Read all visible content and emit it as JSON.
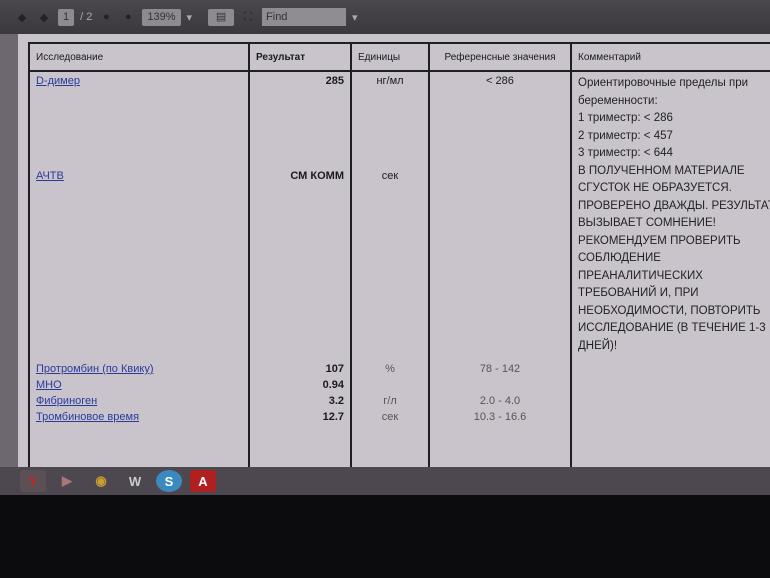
{
  "toolbar": {
    "page_current": "1",
    "page_total": "/ 2",
    "zoom": "139%",
    "find_placeholder": "Find"
  },
  "table": {
    "headers": [
      "Исследование",
      "Результат",
      "Единицы",
      "Референсные значения",
      "Комментарий"
    ],
    "rows": [
      {
        "name": "D-димер",
        "result": "285",
        "unit": "нг/мл",
        "ref": "< 286"
      },
      {
        "name": "АЧТВ",
        "result": "СМ КОММ",
        "unit": "сек",
        "ref": ""
      },
      {
        "name": "Протромбин (по Квику)",
        "result": "107",
        "unit": "%",
        "ref": "78 - 142"
      },
      {
        "name": "МНО",
        "result": "0.94",
        "unit": "",
        "ref": ""
      },
      {
        "name": "Фибриноген",
        "result": "3.2",
        "unit": "г/л",
        "ref": "2.0 - 4.0"
      },
      {
        "name": "Тромбиновое время",
        "result": "12.7",
        "unit": "сек",
        "ref": "10.3 - 16.6"
      }
    ],
    "comment_ddimer": [
      "Ориентировочные пределы при беременности:",
      "1 триместр: < 286",
      "2 триместр: < 457",
      "3 триместр: < 644"
    ],
    "comment_aptt": "В ПОЛУЧЕННОМ МАТЕРИАЛЕ СГУСТОК НЕ ОБРАЗУЕТСЯ. ПРОВЕРЕНО ДВАЖДЫ. РЕЗУЛЬТАТ ВЫЗЫВАЕТ СОМНЕНИЕ! РЕКОМЕНДУЕМ ПРОВЕРИТЬ СОБЛЮДЕНИЕ ПРЕАНАЛИТИЧЕСКИХ ТРЕБОВАНИЙ И, ПРИ НЕОБХОДИМОСТИ, ПОВТОРИТЬ ИССЛЕДОВАНИЕ (В ТЕЧЕНИЕ 1-3 ДНЕЙ)!"
  },
  "taskbar": {
    "icons": [
      "yandex-icon",
      "media-player-icon",
      "chrome-icon",
      "world-of-tanks-icon",
      "skype-icon",
      "pdf-reader-icon"
    ],
    "labels": [
      "Y",
      "▶",
      "◉",
      "W",
      "S",
      "A"
    ]
  }
}
